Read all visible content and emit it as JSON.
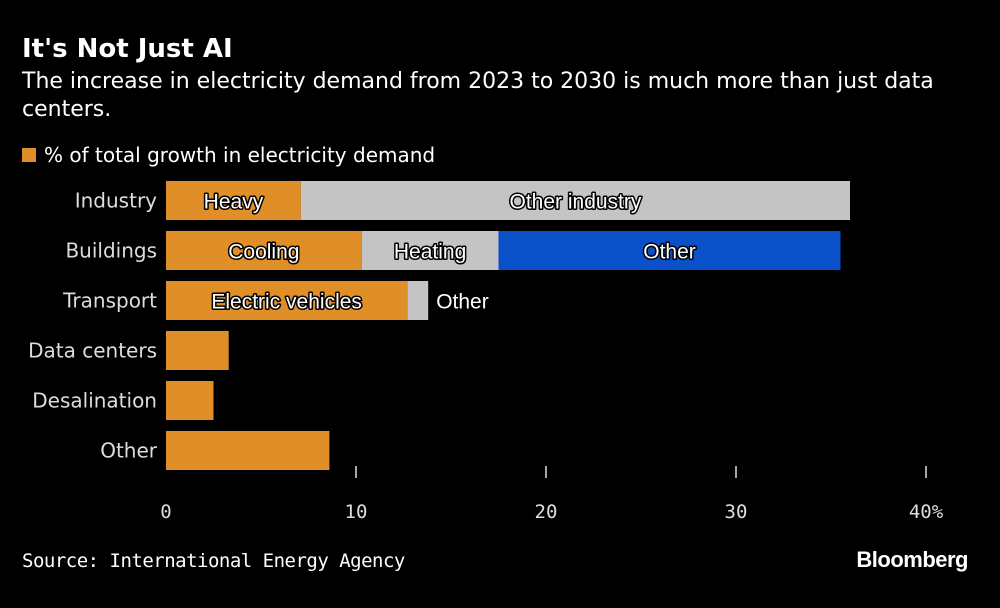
{
  "header": {
    "title": "It's Not Just AI",
    "subtitle": "The increase in electricity demand from 2023 to 2030 is much more than just data centers."
  },
  "footer": {
    "source": "Source: International Energy Agency",
    "logo": "Bloomberg"
  },
  "colors": {
    "orange": "#E08E27",
    "gray": "#C4C4C4",
    "blue": "#0A50C8",
    "background": "#000000"
  },
  "chart_data": {
    "type": "bar",
    "orientation": "horizontal",
    "stacked": true,
    "legend": {
      "label": "% of total growth in electricity demand",
      "placement": "top-left"
    },
    "categories": [
      "Industry",
      "Buildings",
      "Transport",
      "Data centers",
      "Desalination",
      "Other"
    ],
    "segments": [
      [
        {
          "label": "Heavy",
          "value": 7.1,
          "color": "#E08E27"
        },
        {
          "label": "Other industry",
          "value": 28.9,
          "color": "#C4C4C4"
        }
      ],
      [
        {
          "label": "Cooling",
          "value": 10.3,
          "color": "#E08E27"
        },
        {
          "label": "Heating",
          "value": 7.2,
          "color": "#C4C4C4"
        },
        {
          "label": "Other",
          "value": 18.0,
          "color": "#0A50C8"
        }
      ],
      [
        {
          "label": "Electric vehicles",
          "value": 12.7,
          "color": "#E08E27"
        },
        {
          "label": "Other",
          "value": 1.1,
          "color": "#C4C4C4",
          "label_outside": true
        }
      ],
      [
        {
          "label": "",
          "value": 3.3,
          "color": "#E08E27"
        }
      ],
      [
        {
          "label": "",
          "value": 2.5,
          "color": "#E08E27"
        }
      ],
      [
        {
          "label": "",
          "value": 8.6,
          "color": "#E08E27"
        }
      ]
    ],
    "xlim": [
      0,
      40
    ],
    "xticks": [
      "0",
      "10",
      "20",
      "30",
      "40%"
    ],
    "grid": false
  }
}
